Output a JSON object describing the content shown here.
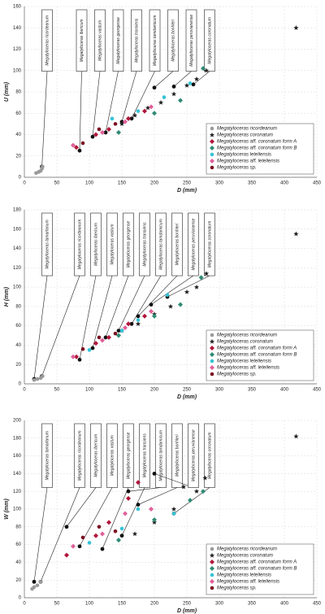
{
  "chart_data": [
    {
      "type": "scatter",
      "xlabel": "D (mm)",
      "ylabel": "U (mm)",
      "xlim": [
        0,
        450
      ],
      "ylim": [
        0,
        160
      ],
      "xticks": [
        0,
        50,
        100,
        150,
        200,
        250,
        300,
        350,
        400,
        450
      ],
      "yticks": [
        0,
        20,
        40,
        60,
        80,
        100,
        120,
        140,
        160
      ],
      "grid": true,
      "legend": "lower right",
      "series": [
        {
          "name": "Megatyloceras ricordeanum",
          "color": "#9a9a9a",
          "marker": "circle",
          "x": [
            18,
            22,
            25,
            27,
            28
          ],
          "values": [
            4,
            5,
            6,
            8,
            10
          ]
        },
        {
          "name": "Megatyloceras coronatum",
          "color": "#222222",
          "marker": "star",
          "x": [
            150,
            170,
            190,
            210,
            230,
            250,
            265,
            280,
            418
          ],
          "values": [
            50,
            58,
            65,
            70,
            78,
            86,
            92,
            100,
            140
          ]
        },
        {
          "name": "Megatyloceras aff. coronatum form A",
          "color": "#b0173a",
          "marker": "diamond",
          "x": [
            80,
            110,
            130,
            160,
            185
          ],
          "values": [
            28,
            40,
            45,
            55,
            62
          ]
        },
        {
          "name": "Megatyloceras aff. coronatum form B",
          "color": "#2e8b74",
          "marker": "diamond",
          "x": [
            145,
            200,
            240,
            275
          ],
          "values": [
            42,
            60,
            72,
            102
          ]
        },
        {
          "name": "Megatyloceras leteliensis",
          "color": "#35c3d6",
          "marker": "circle",
          "x": [
            135,
            175,
            215,
            255
          ],
          "values": [
            55,
            62,
            75,
            88
          ]
        },
        {
          "name": "Megatyloceras aff. leteliensis",
          "color": "#e0609a",
          "marker": "diamond",
          "x": [
            75,
            120,
            155,
            195
          ],
          "values": [
            30,
            42,
            52,
            66
          ]
        },
        {
          "name": "Megatyloceras sp.",
          "color": "#7a1020",
          "marker": "circle",
          "x": [
            90,
            115,
            140
          ],
          "values": [
            32,
            45,
            50
          ]
        }
      ],
      "annotations": [
        {
          "text": "Megatyloceras ricordeanum",
          "x": 27,
          "y": 10
        },
        {
          "text": "Megatyloceras ibericum",
          "x": 85,
          "y": 25
        },
        {
          "text": "Megatyloceras vastum",
          "x": 105,
          "y": 38
        },
        {
          "text": "Megatyloceras georgense",
          "x": 125,
          "y": 42
        },
        {
          "text": "Megatyloceras transiens",
          "x": 150,
          "y": 52
        },
        {
          "text": "Megatyloceras tamdamicum",
          "x": 165,
          "y": 55
        },
        {
          "text": "Megatyloceras bonhleri",
          "x": 200,
          "y": 84
        },
        {
          "text": "Megatyloceras peruvianense",
          "x": 230,
          "y": 85
        },
        {
          "text": "Megatyloceras coronatum",
          "x": 260,
          "y": 87
        }
      ]
    },
    {
      "type": "scatter",
      "xlabel": "D (mm)",
      "ylabel": "H (mm)",
      "xlim": [
        0,
        450
      ],
      "ylim": [
        0,
        180
      ],
      "xticks": [
        0,
        50,
        100,
        150,
        200,
        250,
        300,
        350,
        400,
        450
      ],
      "yticks": [
        0,
        20,
        40,
        60,
        80,
        100,
        120,
        140,
        160,
        180
      ],
      "grid": true,
      "legend": "lower right",
      "series": [
        {
          "name": "Megatyloceras ricordeanum",
          "color": "#9a9a9a",
          "marker": "circle",
          "x": [
            15,
            20,
            25,
            28
          ],
          "values": [
            4,
            5,
            6,
            8
          ]
        },
        {
          "name": "Megatyloceras coronatum",
          "color": "#222222",
          "marker": "star",
          "x": [
            150,
            175,
            200,
            225,
            250,
            265,
            280,
            418
          ],
          "values": [
            55,
            62,
            72,
            80,
            95,
            100,
            114,
            155
          ]
        },
        {
          "name": "Megatyloceras aff. coronatum form A",
          "color": "#b0173a",
          "marker": "diamond",
          "x": [
            80,
            110,
            130,
            160,
            185
          ],
          "values": [
            28,
            42,
            48,
            62,
            70
          ]
        },
        {
          "name": "Megatyloceras aff. coronatum form B",
          "color": "#2e8b74",
          "marker": "diamond",
          "x": [
            145,
            200,
            240,
            272
          ],
          "values": [
            50,
            70,
            82,
            110
          ]
        },
        {
          "name": "Megatyloceras leteliensis",
          "color": "#35c3d6",
          "marker": "circle",
          "x": [
            100,
            150,
            175,
            220
          ],
          "values": [
            35,
            55,
            66,
            92
          ]
        },
        {
          "name": "Megatyloceras aff. leteliensis",
          "color": "#e0609a",
          "marker": "diamond",
          "x": [
            75,
            120,
            155,
            195
          ],
          "values": [
            28,
            45,
            58,
            75
          ]
        },
        {
          "name": "Megatyloceras sp.",
          "color": "#7a1020",
          "marker": "circle",
          "x": [
            90,
            115,
            140
          ],
          "values": [
            36,
            48,
            52
          ]
        }
      ],
      "annotations": [
        {
          "text": "Megatyloceras tamarlanum",
          "x": 15,
          "y": 5
        },
        {
          "text": "Megatyloceras ricordeanum",
          "x": 27,
          "y": 8
        },
        {
          "text": "Megatyloceras ibericum",
          "x": 85,
          "y": 25
        },
        {
          "text": "Megatyloceras vastum",
          "x": 105,
          "y": 37
        },
        {
          "text": "Megatyloceras georgense",
          "x": 125,
          "y": 48
        },
        {
          "text": "Megatyloceras transiens",
          "x": 145,
          "y": 55
        },
        {
          "text": "Megatyloceras tamdamicum",
          "x": 165,
          "y": 62
        },
        {
          "text": "Megatyloceras bonhleri",
          "x": 175,
          "y": 70
        },
        {
          "text": "Megatyloceras peruvianense",
          "x": 195,
          "y": 82
        },
        {
          "text": "Megatyloceras coronatum",
          "x": 220,
          "y": 90
        }
      ]
    },
    {
      "type": "scatter",
      "xlabel": "D (mm)",
      "ylabel": "W (mm)",
      "xlim": [
        0,
        450
      ],
      "ylim": [
        0,
        200
      ],
      "xticks": [
        0,
        50,
        100,
        150,
        200,
        250,
        300,
        350,
        400,
        450
      ],
      "yticks": [
        0,
        20,
        40,
        60,
        80,
        100,
        120,
        140,
        160,
        180,
        200
      ],
      "grid": true,
      "legend": "lower right",
      "series": [
        {
          "name": "Megatyloceras ricordeanum",
          "color": "#9a9a9a",
          "marker": "circle",
          "x": [
            12,
            15,
            20,
            25
          ],
          "values": [
            10,
            12,
            14,
            18
          ]
        },
        {
          "name": "Megatyloceras coronatum",
          "color": "#222222",
          "marker": "star",
          "x": [
            170,
            200,
            230,
            245,
            265,
            278,
            418
          ],
          "values": [
            72,
            85,
            100,
            125,
            120,
            135,
            182
          ]
        },
        {
          "name": "Megatyloceras aff. coronatum form A",
          "color": "#b0173a",
          "marker": "diamond",
          "x": [
            65,
            110,
            130,
            160,
            175
          ],
          "values": [
            48,
            70,
            85,
            112,
            130
          ]
        },
        {
          "name": "Megatyloceras aff. coronatum form B",
          "color": "#2e8b74",
          "marker": "diamond",
          "x": [
            145,
            200,
            255,
            275
          ],
          "values": [
            65,
            88,
            110,
            120
          ]
        },
        {
          "name": "Megatyloceras leteliensis",
          "color": "#35c3d6",
          "marker": "circle",
          "x": [
            100,
            150,
            175,
            230
          ],
          "values": [
            62,
            78,
            100,
            95
          ]
        },
        {
          "name": "Megatyloceras aff. leteliensis",
          "color": "#e0609a",
          "marker": "diamond",
          "x": [
            75,
            120,
            155,
            195
          ],
          "values": [
            58,
            72,
            95,
            100
          ]
        },
        {
          "name": "Megatyloceras sp.",
          "color": "#7a1020",
          "marker": "circle",
          "x": [
            90,
            115,
            140
          ],
          "values": [
            68,
            80,
            75
          ]
        }
      ],
      "annotations": [
        {
          "text": "Megatyloceras tamarlanum",
          "x": 15,
          "y": 18
        },
        {
          "text": "Megatyloceras ricordeanum",
          "x": 25,
          "y": 18
        },
        {
          "text": "Megatyloceras ibericum",
          "x": 65,
          "y": 80
        },
        {
          "text": "Megatyloceras vastum",
          "x": 85,
          "y": 58
        },
        {
          "text": "Megatyloceras georgense",
          "x": 120,
          "y": 55
        },
        {
          "text": "Megatyloceras transiens",
          "x": 150,
          "y": 70
        },
        {
          "text": "Megatyloceras tamdamicum",
          "x": 160,
          "y": 120
        },
        {
          "text": "Megatyloceras bonhleri",
          "x": 175,
          "y": 105
        },
        {
          "text": "Megatyloceras peruvianense",
          "x": 200,
          "y": 140
        },
        {
          "text": "Megatyloceras coronatum",
          "x": 230,
          "y": 95
        }
      ]
    }
  ]
}
